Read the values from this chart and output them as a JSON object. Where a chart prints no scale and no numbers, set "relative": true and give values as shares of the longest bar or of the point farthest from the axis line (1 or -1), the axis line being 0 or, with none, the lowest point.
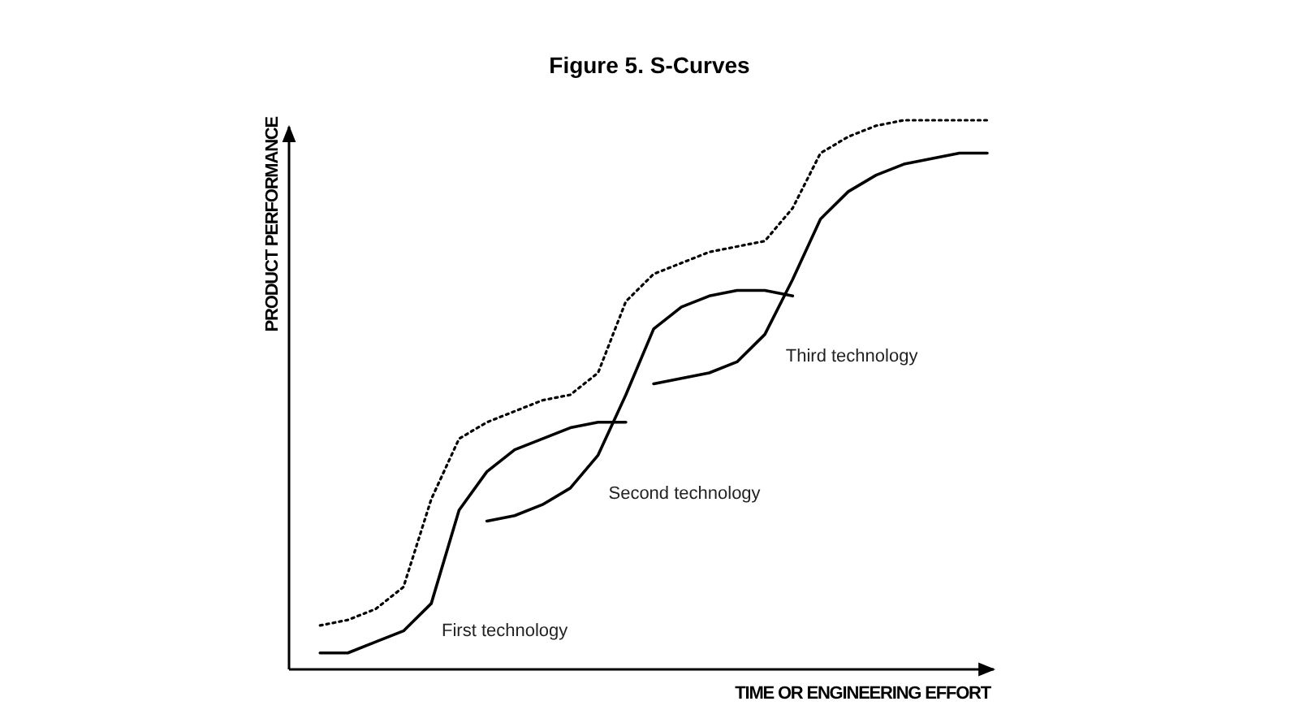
{
  "chart_data": {
    "type": "line",
    "title": "Figure 5. S-Curves",
    "xlabel": "TIME OR ENGINEERING EFFORT",
    "ylabel": "PRODUCT PERFORMANCE",
    "relative": true,
    "grid": false,
    "legend": false,
    "marker": "none",
    "categories": [
      null,
      null,
      null,
      null,
      null,
      null,
      null,
      null,
      null,
      null,
      null,
      null,
      null,
      null,
      null,
      null,
      null,
      null,
      null,
      null,
      null,
      null,
      null,
      null,
      null,
      null
    ],
    "series": [
      {
        "color": "#000000",
        "line_style": "dotted",
        "values": [
          null,
          0.08,
          0.09,
          0.11,
          0.15,
          0.31,
          0.42,
          0.45,
          0.47,
          0.49,
          0.5,
          0.54,
          0.67,
          0.72,
          0.74,
          0.76,
          0.77,
          0.78,
          0.84,
          0.94,
          0.97,
          0.99,
          1.0,
          1.0,
          1.0,
          1.0
        ]
      },
      {
        "name": "First technology",
        "color": "#000000",
        "line_style": "solid",
        "values": [
          null,
          0.03,
          0.03,
          0.05,
          0.07,
          0.12,
          0.29,
          0.36,
          0.4,
          0.42,
          0.44,
          0.45,
          0.45,
          null,
          null,
          null,
          null,
          null,
          null,
          null,
          null,
          null,
          null,
          null,
          null,
          null
        ]
      },
      {
        "name": "Second technology",
        "color": "#000000",
        "line_style": "solid",
        "values": [
          null,
          null,
          null,
          null,
          null,
          null,
          null,
          0.27,
          0.28,
          0.3,
          0.33,
          0.39,
          0.5,
          0.62,
          0.66,
          0.68,
          0.69,
          0.69,
          0.68,
          null,
          null,
          null,
          null,
          null,
          null,
          null
        ]
      },
      {
        "name": "Third technology",
        "color": "#000000",
        "line_style": "solid",
        "values": [
          null,
          null,
          null,
          null,
          null,
          null,
          null,
          null,
          null,
          null,
          null,
          null,
          null,
          0.52,
          0.53,
          0.54,
          0.56,
          0.61,
          0.71,
          0.82,
          0.87,
          0.9,
          0.92,
          0.93,
          0.94,
          0.94
        ]
      }
    ]
  }
}
